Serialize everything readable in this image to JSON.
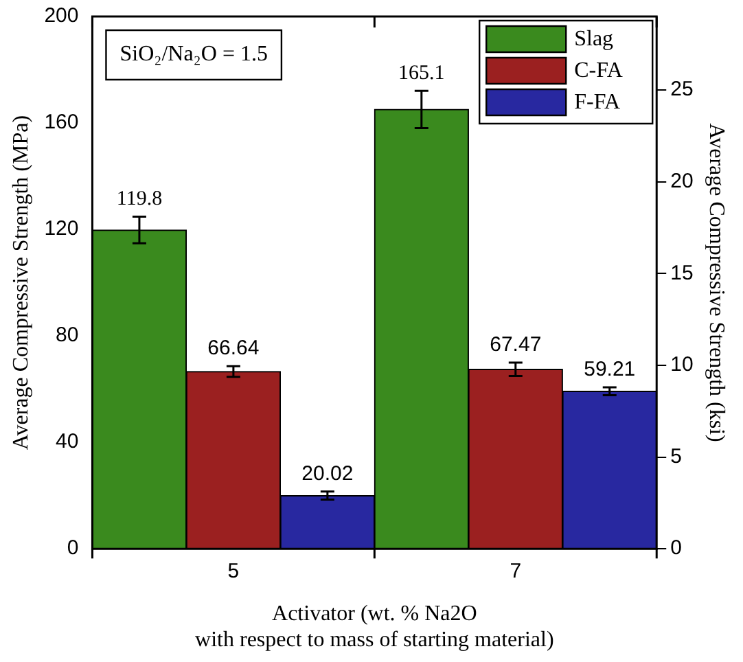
{
  "chart_data": {
    "type": "bar",
    "categories": [
      "5",
      "7"
    ],
    "series": [
      {
        "name": "Slag",
        "color": "#3a8a1e",
        "values": [
          119.8,
          165.1
        ],
        "errors": [
          5,
          7
        ]
      },
      {
        "name": "C-FA",
        "color": "#9b2020",
        "values": [
          66.64,
          67.47
        ],
        "errors": [
          2,
          2.5
        ]
      },
      {
        "name": "F-FA",
        "color": "#2828a0",
        "values": [
          20.02,
          59.21
        ],
        "errors": [
          1.5,
          1.5
        ]
      }
    ],
    "xlabel": "Activator (wt. % Na2O\nwith respect to mass of starting material)",
    "ylabel": "Average Compressive Strength (MPa)",
    "y2label": "Average Compressive Strength (ksi)",
    "ylim": [
      0,
      200
    ],
    "yticks": [
      0,
      40,
      80,
      120,
      160,
      200
    ],
    "y2lim": [
      0,
      29.0
    ],
    "y2ticks": [
      0,
      5,
      10,
      15,
      20,
      25
    ],
    "annotations": [
      "SiO₂/Na₂O = 1.5"
    ],
    "data_labels": true,
    "grid": false,
    "legend": "top right"
  }
}
